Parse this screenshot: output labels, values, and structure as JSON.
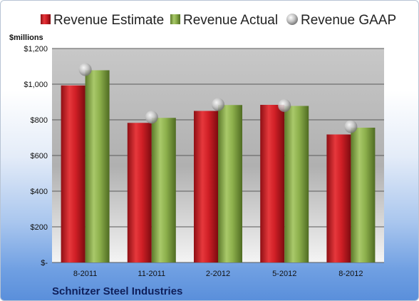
{
  "chart_data": {
    "type": "bar",
    "unit_label": "$millions",
    "company": "Schnitzer Steel Industries",
    "categories": [
      "8-2011",
      "11-2011",
      "2-2012",
      "5-2012",
      "8-2012"
    ],
    "series": [
      {
        "name": "Revenue Estimate",
        "type": "bar",
        "color": "#d01f26",
        "values": [
          993,
          783,
          850,
          884,
          718
        ]
      },
      {
        "name": "Revenue Actual",
        "type": "bar",
        "color": "#8db04c",
        "values": [
          1078,
          811,
          883,
          878,
          756
        ]
      },
      {
        "name": "Revenue GAAP",
        "type": "scatter",
        "color": "#c0c0c0",
        "values": [
          1082,
          815,
          886,
          880,
          762
        ]
      }
    ],
    "yticks": [
      {
        "value": 0,
        "label": "$-"
      },
      {
        "value": 200,
        "label": "$200"
      },
      {
        "value": 400,
        "label": "$400"
      },
      {
        "value": 600,
        "label": "$600"
      },
      {
        "value": 800,
        "label": "$800"
      },
      {
        "value": 1000,
        "label": "$1,000"
      },
      {
        "value": 1200,
        "label": "$1,200"
      }
    ],
    "ylim": [
      0,
      1200
    ],
    "grid": true,
    "legend_position": "top"
  }
}
